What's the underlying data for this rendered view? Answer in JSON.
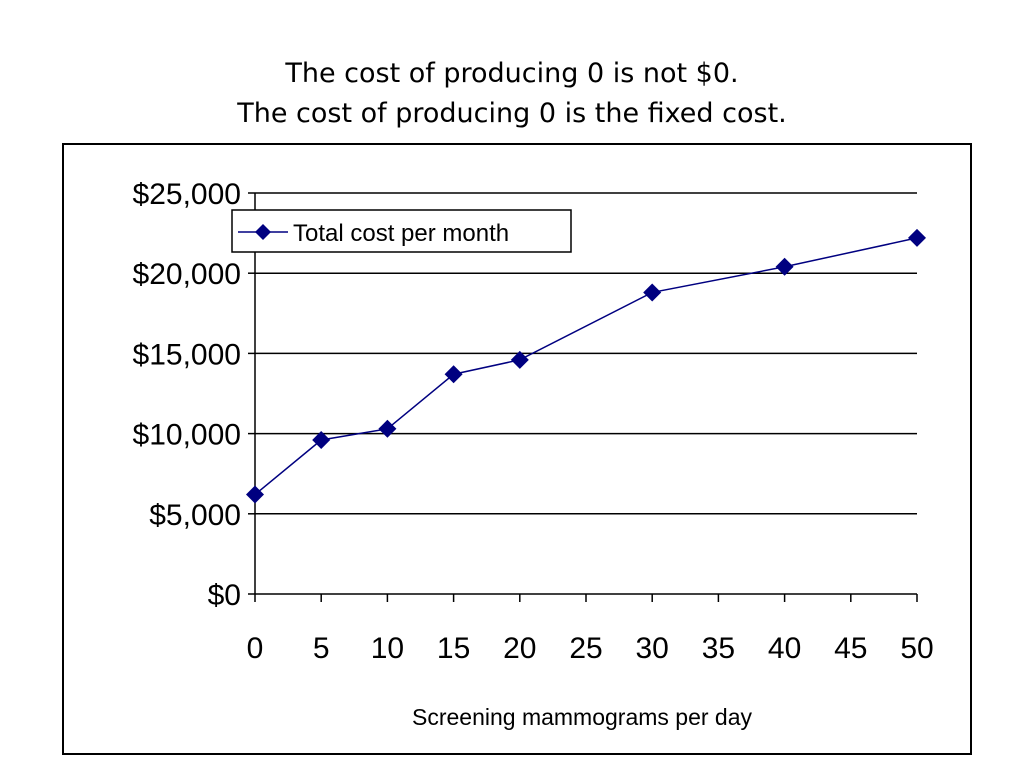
{
  "slide": {
    "title_line1": "The cost of producing 0 is not $0.",
    "title_line2": "The cost of producing 0 is the fixed cost."
  },
  "chart_data": {
    "type": "line",
    "title": "",
    "xlabel": "Screening mammograms per day",
    "ylabel": "",
    "x": [
      0,
      5,
      10,
      15,
      20,
      30,
      40,
      50
    ],
    "series": [
      {
        "name": "Total cost per month",
        "values": [
          6200,
          9600,
          10300,
          13700,
          14600,
          18800,
          20400,
          22200
        ],
        "color": "#000080",
        "marker": "diamond"
      }
    ],
    "xlim": [
      0,
      50
    ],
    "ylim": [
      0,
      25000
    ],
    "x_ticks": [
      0,
      5,
      10,
      15,
      20,
      25,
      30,
      35,
      40,
      45,
      50
    ],
    "x_tick_labels": [
      "0",
      "5",
      "10",
      "15",
      "20",
      "25",
      "30",
      "35",
      "40",
      "45",
      "50"
    ],
    "y_ticks": [
      0,
      5000,
      10000,
      15000,
      20000,
      25000
    ],
    "y_tick_labels": [
      "$0",
      "$5,000",
      "$10,000",
      "$15,000",
      "$20,000",
      "$25,000"
    ],
    "grid": "horizontal",
    "legend_position": "top-left"
  }
}
